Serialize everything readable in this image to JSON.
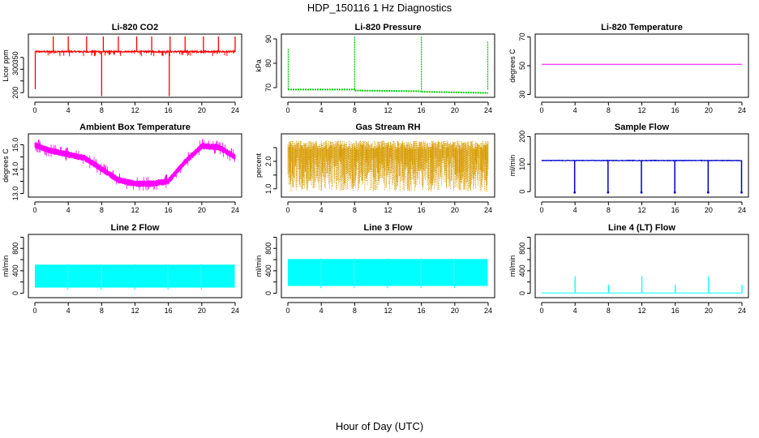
{
  "title": "HDP_150116  1 Hz Diagnostics",
  "xlabel": "Hour of Day (UTC)",
  "chart_data": [
    {
      "type": "line",
      "title": "Li-820 CO2",
      "ylabel": "Licor ppm",
      "xlim": [
        0,
        24
      ],
      "ylim": [
        180,
        450
      ],
      "x_ticks": [
        0,
        4,
        8,
        12,
        16,
        20,
        24
      ],
      "y_ticks": [
        200,
        250,
        300,
        350
      ],
      "y_tick_labels": [
        "200",
        "",
        "300",
        "350"
      ],
      "color": "#ff0000",
      "baseline": 375,
      "noise": 6,
      "band_low": 0,
      "band_high": 0,
      "spikes": [
        {
          "x": 0.05,
          "y": 215
        },
        {
          "x": 8.0,
          "y": 185
        },
        {
          "x": 16.1,
          "y": 185
        },
        {
          "x": 2.2,
          "y": 440
        },
        {
          "x": 4.0,
          "y": 440
        },
        {
          "x": 6.2,
          "y": 440
        },
        {
          "x": 8.2,
          "y": 440
        },
        {
          "x": 10.0,
          "y": 440
        },
        {
          "x": 12.2,
          "y": 440
        },
        {
          "x": 14.0,
          "y": 440
        },
        {
          "x": 16.2,
          "y": 440
        },
        {
          "x": 18.0,
          "y": 440
        },
        {
          "x": 20.2,
          "y": 440
        },
        {
          "x": 22.0,
          "y": 440
        },
        {
          "x": 24.0,
          "y": 440
        }
      ]
    },
    {
      "type": "line",
      "title": "Li-820 Pressure",
      "ylabel": "kPa",
      "xlim": [
        0,
        24
      ],
      "ylim": [
        66,
        92
      ],
      "x_ticks": [
        0,
        4,
        8,
        12,
        16,
        20,
        24
      ],
      "y_ticks": [
        70,
        80,
        90
      ],
      "y_tick_labels": [
        "70",
        "80",
        "90"
      ],
      "color": "#00cc00",
      "segments": [
        [
          0,
          69.2
        ],
        [
          8,
          69.2
        ],
        [
          8,
          68.8
        ],
        [
          16,
          68.5
        ],
        [
          16,
          68.3
        ],
        [
          24,
          67.8
        ]
      ],
      "spikes": [
        {
          "x": 0.05,
          "y": 86
        },
        {
          "x": 8.0,
          "y": 91
        },
        {
          "x": 16.0,
          "y": 91
        },
        {
          "x": 23.95,
          "y": 89
        }
      ]
    },
    {
      "type": "line",
      "title": "Li-820 Temperature",
      "ylabel": "degrees C",
      "xlim": [
        0,
        24
      ],
      "ylim": [
        28,
        72
      ],
      "x_ticks": [
        0,
        4,
        8,
        12,
        16,
        20,
        24
      ],
      "y_ticks": [
        30,
        50,
        70
      ],
      "y_tick_labels": [
        "30",
        "50",
        "70"
      ],
      "color": "#ff00ff",
      "segments": [
        [
          0,
          51
        ],
        [
          24,
          51
        ]
      ],
      "spikes": []
    },
    {
      "type": "line",
      "title": "Ambient Box Temperature",
      "ylabel": "degrees C",
      "xlim": [
        0,
        24
      ],
      "ylim": [
        12.85,
        15.45
      ],
      "x_ticks": [
        0,
        4,
        8,
        12,
        16,
        20,
        24
      ],
      "y_ticks": [
        13.0,
        13.5,
        14.0,
        14.5,
        15.0
      ],
      "y_tick_labels": [
        "13.0",
        "",
        "14.0",
        "",
        "15.0"
      ],
      "color": "#ff00ff",
      "band_points": [
        [
          0,
          15.0
        ],
        [
          1,
          14.85
        ],
        [
          2,
          14.75
        ],
        [
          4,
          14.6
        ],
        [
          6,
          14.45
        ],
        [
          8,
          14.0
        ],
        [
          10,
          13.55
        ],
        [
          12,
          13.4
        ],
        [
          14,
          13.4
        ],
        [
          16,
          13.5
        ],
        [
          18,
          14.3
        ],
        [
          20,
          14.95
        ],
        [
          22,
          14.9
        ],
        [
          24,
          14.5
        ]
      ],
      "band_width": 0.28,
      "spikes": []
    },
    {
      "type": "line",
      "title": "Gas Stream RH",
      "ylabel": "percent",
      "xlim": [
        0,
        24
      ],
      "ylim": [
        0.7,
        3.0
      ],
      "x_ticks": [
        0,
        4,
        8,
        12,
        16,
        20,
        24
      ],
      "y_ticks": [
        1.0,
        1.5,
        2.0,
        2.5
      ],
      "y_tick_labels": [
        "1.0",
        "",
        "2.0",
        ""
      ],
      "color": "#d79b00",
      "band_top": 2.75,
      "band_bottom_range": [
        0.9,
        2.2
      ],
      "spikes": []
    },
    {
      "type": "line",
      "title": "Sample Flow",
      "ylabel": "ml/min",
      "xlim": [
        0,
        24
      ],
      "ylim": [
        -20,
        210
      ],
      "x_ticks": [
        0,
        4,
        8,
        12,
        16,
        20,
        24
      ],
      "y_ticks": [
        0,
        100,
        200
      ],
      "y_tick_labels": [
        "0",
        "100",
        "200"
      ],
      "color": "#0000cc",
      "baseline": 113,
      "noise": 2,
      "dips": [
        {
          "x": 3.95,
          "y": -3
        },
        {
          "x": 7.95,
          "y": -3
        },
        {
          "x": 11.95,
          "y": -3
        },
        {
          "x": 15.95,
          "y": -3
        },
        {
          "x": 19.95,
          "y": -3
        },
        {
          "x": 23.95,
          "y": -3
        }
      ],
      "spikes": []
    },
    {
      "type": "area",
      "title": "Line 2 Flow",
      "ylabel": "ml/min",
      "xlim": [
        0,
        24
      ],
      "ylim": [
        -80,
        1050
      ],
      "x_ticks": [
        0,
        4,
        8,
        12,
        16,
        20,
        24
      ],
      "y_ticks": [
        0,
        200,
        400,
        600,
        800,
        1000
      ],
      "y_tick_labels": [
        "0",
        "",
        "400",
        "",
        "800",
        ""
      ],
      "color": "#00ffff",
      "band_low": 100,
      "band_high": 510,
      "gaps": [
        3.95,
        7.95,
        11.95,
        15.95,
        19.95
      ],
      "spikes": []
    },
    {
      "type": "area",
      "title": "Line 3 Flow",
      "ylabel": "ml/min",
      "xlim": [
        0,
        24
      ],
      "ylim": [
        -80,
        1050
      ],
      "x_ticks": [
        0,
        4,
        8,
        12,
        16,
        20,
        24
      ],
      "y_ticks": [
        0,
        200,
        400,
        600,
        800,
        1000
      ],
      "y_tick_labels": [
        "0",
        "",
        "400",
        "",
        "800",
        ""
      ],
      "color": "#00ffff",
      "band_low": 130,
      "band_high": 610,
      "gaps": [
        3.95,
        7.95,
        11.95,
        15.95,
        19.95
      ],
      "spikes": []
    },
    {
      "type": "line",
      "title": "Line 4 (LT) Flow",
      "ylabel": "ml/min",
      "xlim": [
        0,
        24
      ],
      "ylim": [
        -80,
        1050
      ],
      "x_ticks": [
        0,
        4,
        8,
        12,
        16,
        20,
        24
      ],
      "y_ticks": [
        0,
        200,
        400,
        600,
        800,
        1000
      ],
      "y_tick_labels": [
        "0",
        "",
        "400",
        "",
        "800",
        ""
      ],
      "color": "#00ffff",
      "segments": [
        [
          0,
          5
        ],
        [
          24,
          5
        ]
      ],
      "spikes": [
        {
          "x": 4.0,
          "y": 300
        },
        {
          "x": 8.0,
          "y": 150
        },
        {
          "x": 12.0,
          "y": 300
        },
        {
          "x": 16.0,
          "y": 150
        },
        {
          "x": 20.0,
          "y": 300
        },
        {
          "x": 24.0,
          "y": 150
        }
      ]
    }
  ]
}
